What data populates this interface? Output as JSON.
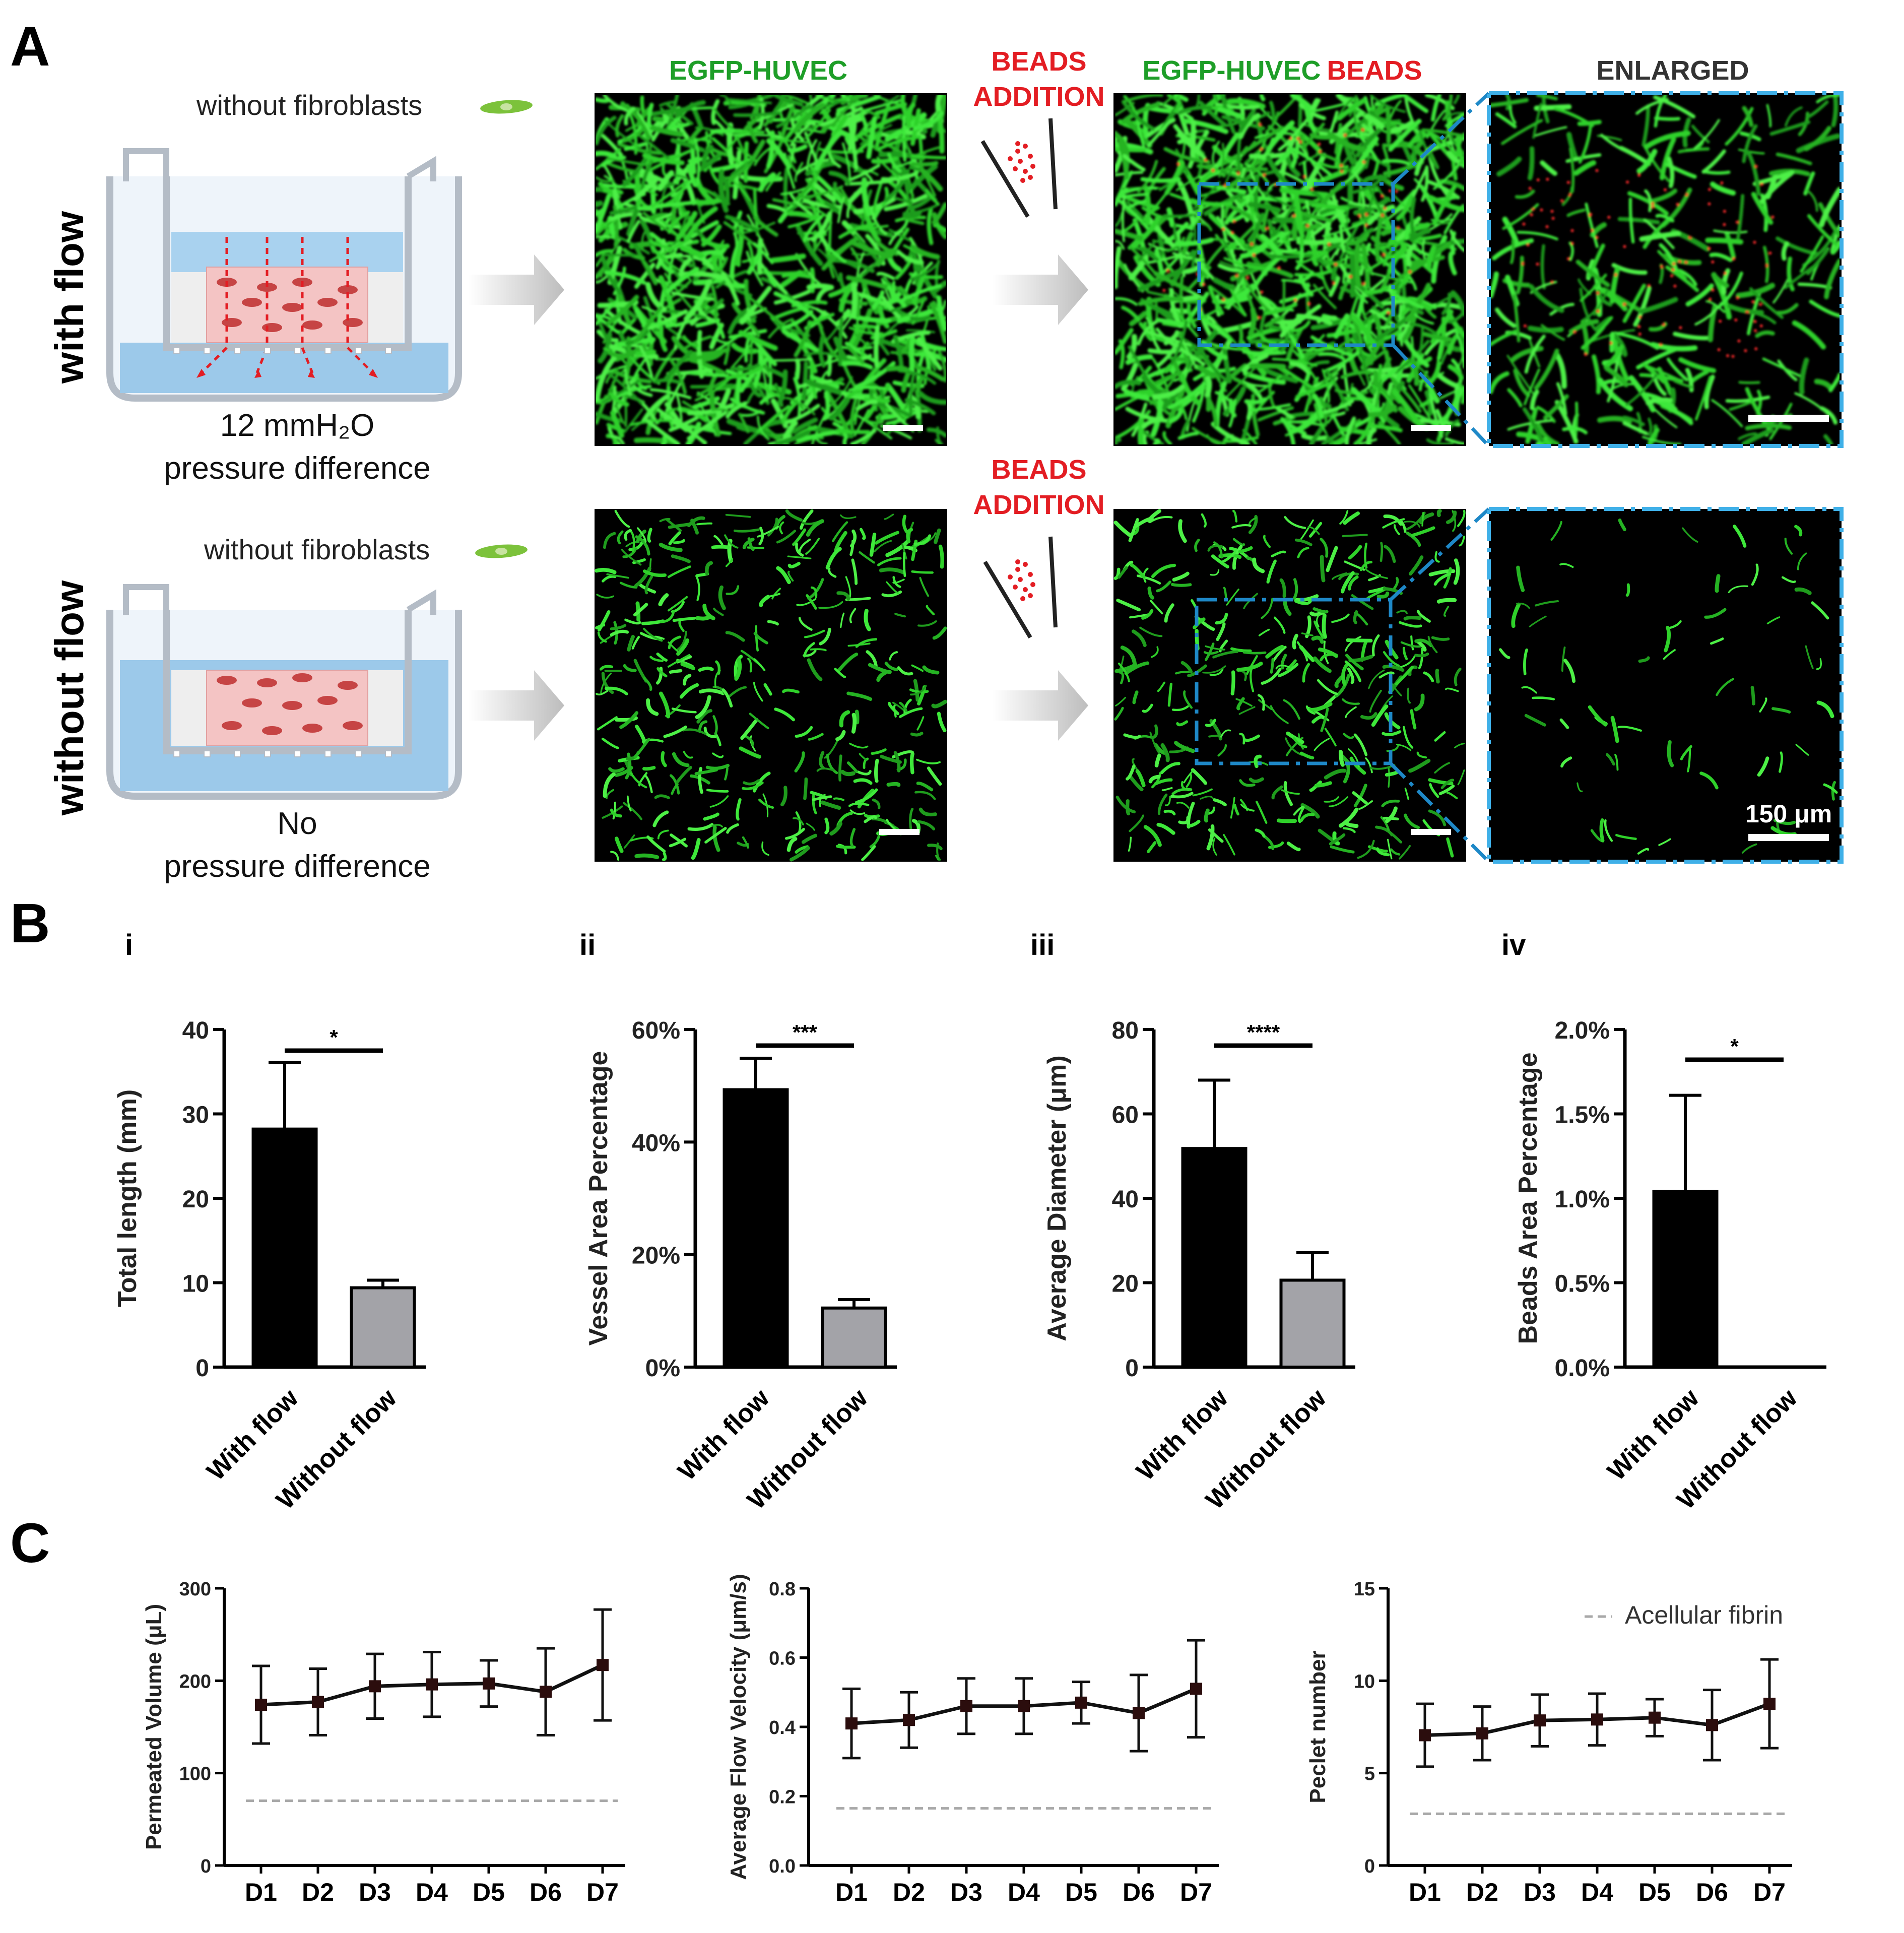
{
  "panel_labels": {
    "a": "A",
    "b": "B",
    "c": "C"
  },
  "panelA": {
    "row_labels": [
      "with flow",
      "without  flow"
    ],
    "fibroblast_note": [
      "without  fibroblasts",
      "without  fibroblasts"
    ],
    "pressure_top": [
      "12 mmH₂O",
      "pressure difference"
    ],
    "pressure_bottom": [
      "No",
      "pressure difference"
    ],
    "col_egfp": "EGFP-HUVEC",
    "col_merge_green": "EGFP-HUVEC",
    "col_merge_red": "BEADS",
    "col_enlarged": "ENLARGED",
    "beads_addition": [
      "BEADS",
      "ADDITION"
    ],
    "scalebar_label": "150 μm",
    "colors": {
      "green": "#1e9e28",
      "red": "#e31d23",
      "blue_box": "#1e88c7",
      "light_blue": "#5ab4e5",
      "medium": "#bcdcf0",
      "gel": "#f4c4c4"
    }
  },
  "panelB": {
    "sublabels": [
      "i",
      "ii",
      "iii",
      "iv"
    ],
    "categories": [
      "With flow",
      "Without flow"
    ],
    "significance": [
      "*",
      "***",
      "****",
      "*"
    ]
  },
  "chart_data": [
    {
      "type": "bar",
      "panel": "B-i",
      "categories": [
        "With flow",
        "Without flow"
      ],
      "values": [
        28.2,
        9.4
      ],
      "errors": [
        7.9,
        0.9
      ],
      "ylabel": "Total length (mm)",
      "ylim": [
        0,
        40
      ],
      "yticks": [
        "0",
        "10",
        "20",
        "30",
        "40"
      ],
      "colors": [
        "#000000",
        "#a3a3a8"
      ]
    },
    {
      "type": "bar",
      "panel": "B-ii",
      "categories": [
        "With flow",
        "Without flow"
      ],
      "values": [
        49.3,
        10.5
      ],
      "errors": [
        5.6,
        1.5
      ],
      "ylabel": "Vessel Area Percentage",
      "ylim": [
        0,
        60
      ],
      "yticks": [
        "0%",
        "20%",
        "40%",
        "60%"
      ],
      "colors": [
        "#000000",
        "#a3a3a8"
      ]
    },
    {
      "type": "bar",
      "panel": "B-iii",
      "categories": [
        "With flow",
        "Without flow"
      ],
      "values": [
        51.8,
        20.6
      ],
      "errors": [
        16.2,
        6.5
      ],
      "ylabel": "Average Diameter (μm)",
      "ylim": [
        0,
        80
      ],
      "yticks": [
        "0",
        "20",
        "40",
        "60",
        "80"
      ],
      "colors": [
        "#000000",
        "#a3a3a8"
      ]
    },
    {
      "type": "bar",
      "panel": "B-iv",
      "categories": [
        "With flow",
        "Without flow"
      ],
      "values": [
        1.04,
        0.0
      ],
      "errors": [
        0.57,
        0.0
      ],
      "ylabel": "Beads Area Percentage",
      "ylim": [
        0,
        2.0
      ],
      "yticks": [
        "0.0%",
        "0.5%",
        "1.0%",
        "1.5%",
        "2.0%"
      ],
      "colors": [
        "#000000",
        "#a3a3a8"
      ]
    },
    {
      "type": "line",
      "panel": "C-1",
      "x": [
        "D1",
        "D2",
        "D3",
        "D4",
        "D5",
        "D6",
        "D7"
      ],
      "y": [
        174,
        177,
        194,
        196,
        197,
        188,
        217
      ],
      "errors": [
        42,
        36,
        35,
        35,
        25,
        47,
        60
      ],
      "ylabel": "Permeated Volume (μL)",
      "ylim": [
        0,
        300
      ],
      "yticks": [
        "0",
        "100",
        "200",
        "300"
      ],
      "reference": 70
    },
    {
      "type": "line",
      "panel": "C-2",
      "x": [
        "D1",
        "D2",
        "D3",
        "D4",
        "D5",
        "D6",
        "D7"
      ],
      "y": [
        0.41,
        0.42,
        0.46,
        0.46,
        0.47,
        0.44,
        0.51
      ],
      "errors": [
        0.1,
        0.08,
        0.08,
        0.08,
        0.06,
        0.11,
        0.14
      ],
      "ylabel": "Average Flow Velocity (μm/s)",
      "ylim": [
        0,
        0.8
      ],
      "yticks": [
        "0.0",
        "0.2",
        "0.4",
        "0.6",
        "0.8"
      ],
      "reference": 0.165
    },
    {
      "type": "line",
      "panel": "C-3",
      "x": [
        "D1",
        "D2",
        "D3",
        "D4",
        "D5",
        "D6",
        "D7"
      ],
      "y": [
        7.05,
        7.15,
        7.85,
        7.9,
        8.0,
        7.6,
        8.75
      ],
      "errors": [
        1.7,
        1.45,
        1.4,
        1.4,
        1.0,
        1.9,
        2.4
      ],
      "ylabel": "Peclet    number",
      "ylim": [
        0,
        15
      ],
      "yticks": [
        "0",
        "5",
        "10",
        "15"
      ],
      "reference": 2.8,
      "legend": "Acellular fibrin"
    }
  ]
}
